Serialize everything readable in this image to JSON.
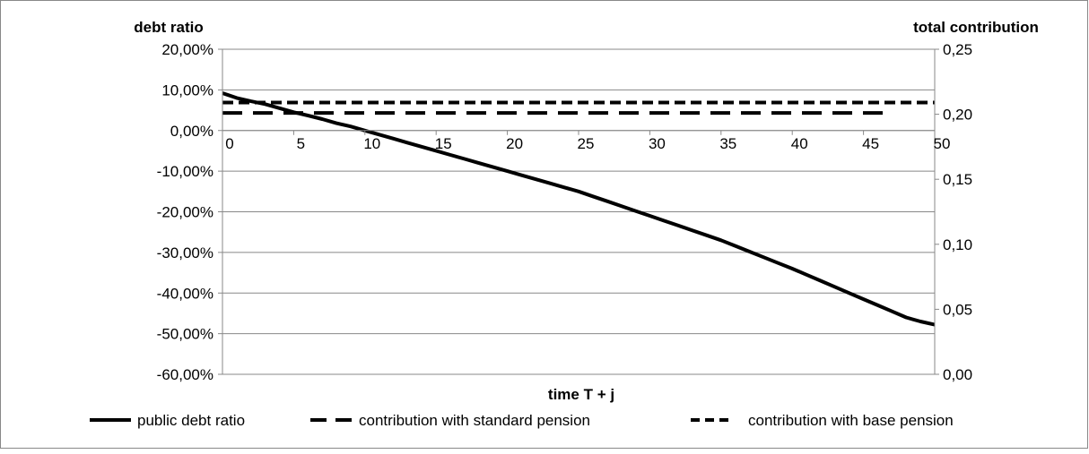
{
  "chart_data": {
    "type": "line",
    "title": "",
    "xlabel": "time T + j",
    "ylabel_left": "debt ratio",
    "ylabel_right": "total contribution",
    "x": [
      0,
      1,
      2,
      3,
      4,
      5,
      6,
      7,
      8,
      9,
      10,
      11,
      12,
      13,
      14,
      15,
      16,
      17,
      18,
      19,
      20,
      21,
      22,
      23,
      24,
      25,
      26,
      27,
      28,
      29,
      30,
      31,
      32,
      33,
      34,
      35,
      36,
      37,
      38,
      39,
      40,
      41,
      42,
      43,
      44,
      45,
      46,
      47,
      48,
      49,
      50
    ],
    "xticks": [
      0,
      5,
      10,
      15,
      20,
      25,
      30,
      35,
      40,
      45,
      50
    ],
    "xtick_labels": [
      "0",
      "5",
      "10",
      "15",
      "20",
      "25",
      "30",
      "35",
      "40",
      "45",
      "50"
    ],
    "xlim": [
      0,
      50
    ],
    "ylim_left": [
      -0.6,
      0.2
    ],
    "yticks_left": [
      0.2,
      0.1,
      0.0,
      -0.1,
      -0.2,
      -0.3,
      -0.4,
      -0.5,
      -0.6
    ],
    "ytick_labels_left": [
      "20,00%",
      "10,00%",
      "0,00%",
      "-10,00%",
      "-20,00%",
      "-30,00%",
      "-40,00%",
      "-50,00%",
      "-60,00%"
    ],
    "ylim_right": [
      0.0,
      0.25
    ],
    "yticks_right": [
      0.25,
      0.2,
      0.15,
      0.1,
      0.05,
      0.0
    ],
    "ytick_labels_right": [
      "0,25",
      "0,20",
      "0,15",
      "0,10",
      "0,05",
      "0,00"
    ],
    "grid": "horizontal",
    "legend_position": "bottom",
    "series": [
      {
        "name": "public debt ratio",
        "axis": "left",
        "style": "solid",
        "color": "#000000",
        "values": [
          0.092,
          0.08,
          0.072,
          0.065,
          0.055,
          0.045,
          0.037,
          0.028,
          0.018,
          0.01,
          0.0,
          -0.01,
          -0.02,
          -0.03,
          -0.04,
          -0.05,
          -0.06,
          -0.07,
          -0.08,
          -0.09,
          -0.1,
          -0.11,
          -0.12,
          -0.13,
          -0.14,
          -0.15,
          -0.162,
          -0.174,
          -0.186,
          -0.198,
          -0.21,
          -0.222,
          -0.234,
          -0.246,
          -0.258,
          -0.27,
          -0.284,
          -0.298,
          -0.312,
          -0.326,
          -0.34,
          -0.355,
          -0.37,
          -0.385,
          -0.4,
          -0.415,
          -0.43,
          -0.445,
          -0.46,
          -0.47,
          -0.478
        ]
      },
      {
        "name": "contribution with standard pension",
        "axis": "right",
        "style": "long-dash",
        "color": "#000000",
        "x": [
          0,
          47
        ],
        "values": [
          0.201,
          0.201
        ]
      },
      {
        "name": "contribution with base pension",
        "axis": "right",
        "style": "short-dash",
        "color": "#000000",
        "x": [
          0,
          50
        ],
        "values": [
          0.209,
          0.209
        ]
      }
    ]
  }
}
